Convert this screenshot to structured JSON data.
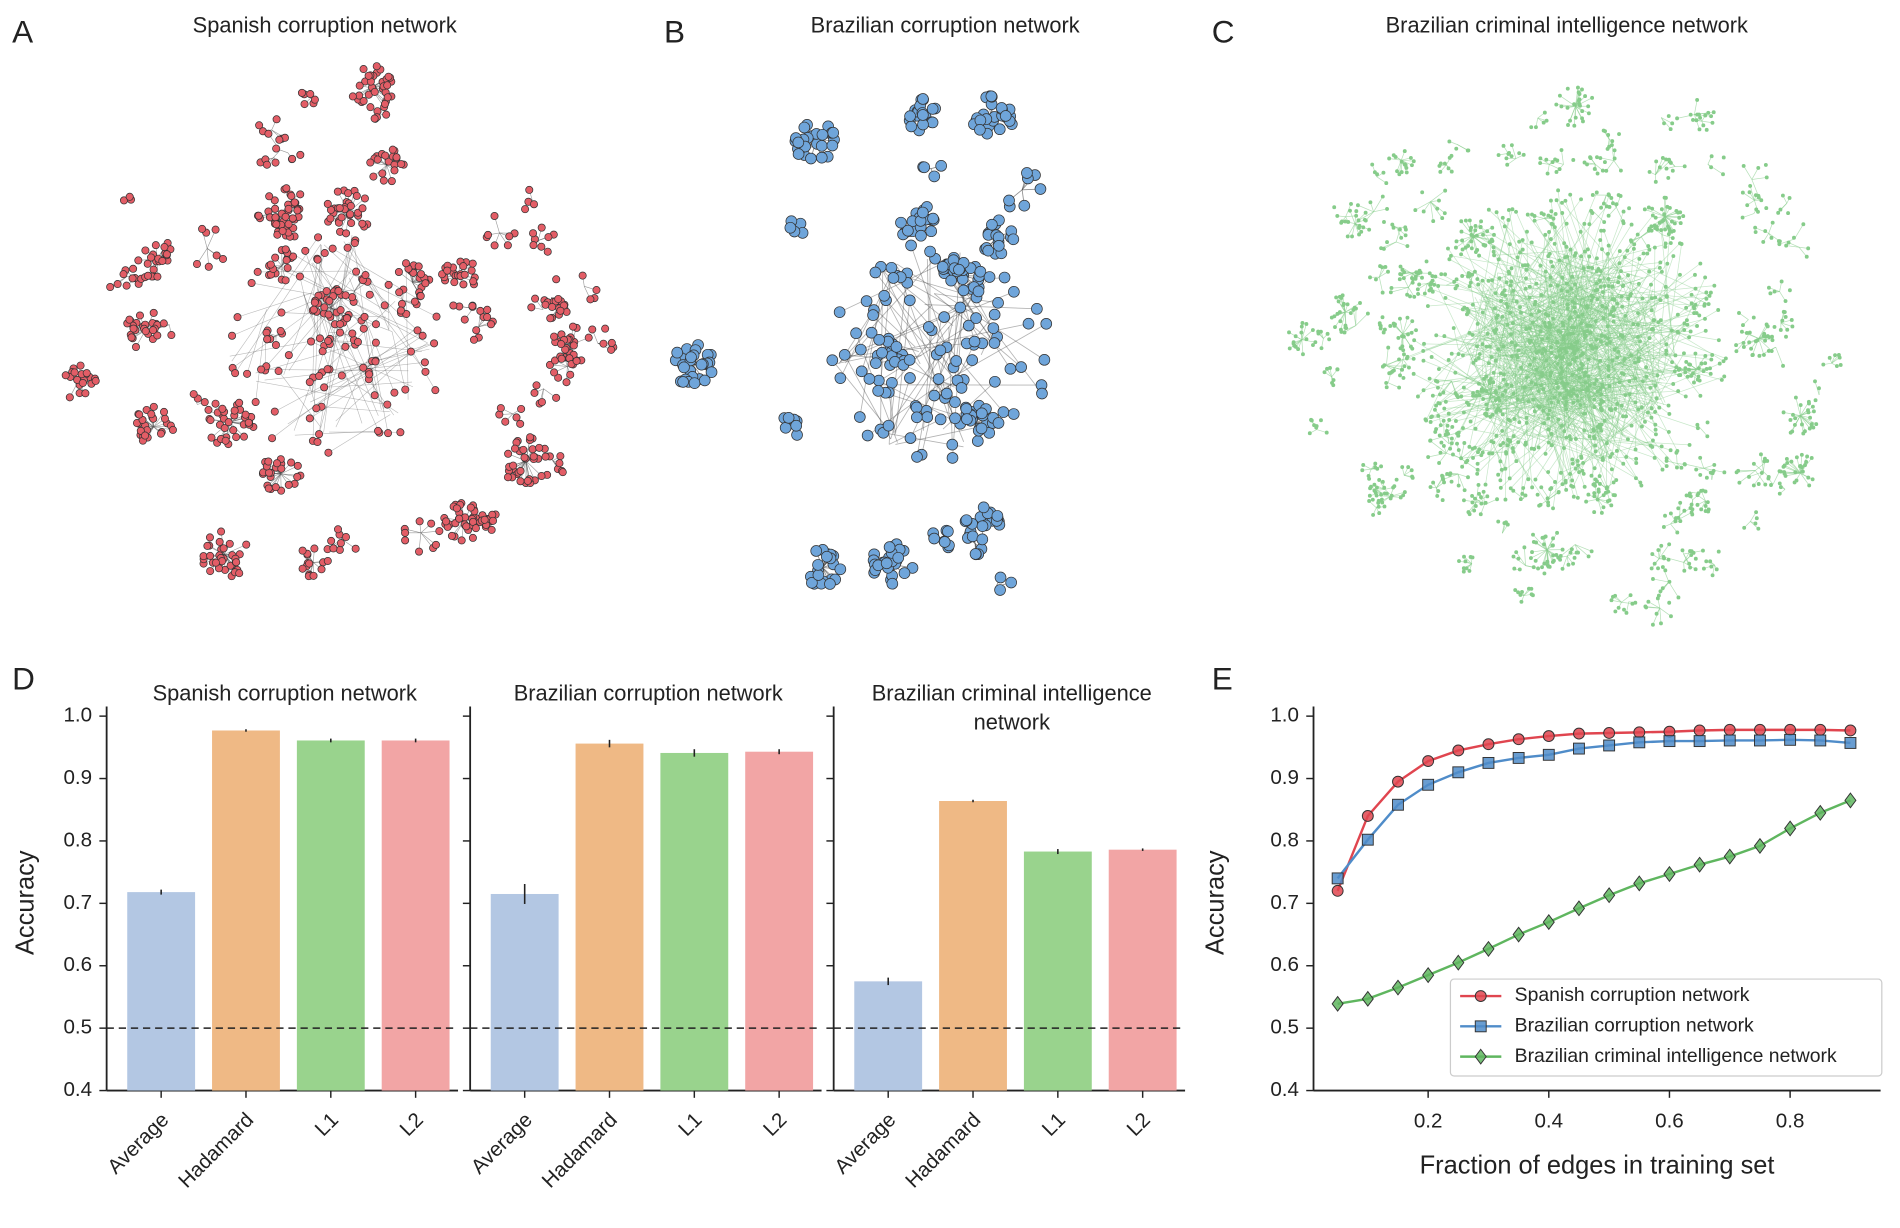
{
  "networks": [
    {
      "label": "A",
      "title": "Spanish corruption network"
    },
    {
      "label": "B",
      "title": "Brazilian corruption network"
    },
    {
      "label": "C",
      "title": "Brazilian criminal intelligence network"
    }
  ],
  "chart_data": [
    {
      "type": "bar",
      "panel_label": "D",
      "title": "Spanish corruption network",
      "ylabel": "Accuracy",
      "categories": [
        "Average",
        "Hadamard",
        "L1",
        "L2"
      ],
      "values": [
        0.718,
        0.977,
        0.961,
        0.961
      ],
      "errors": [
        0.004,
        0.002,
        0.003,
        0.003
      ],
      "colors": [
        "#b3c7e3",
        "#efb985",
        "#99d38d",
        "#f2a5a5"
      ],
      "reference_line": 0.5,
      "ylim": [
        0.4,
        1.0
      ],
      "yticks": [
        0.4,
        0.5,
        0.6,
        0.7,
        0.8,
        0.9,
        {
          "value": 1.0,
          "label": "1.0"
        }
      ]
    },
    {
      "type": "bar",
      "title": "Brazilian corruption network",
      "categories": [
        "Average",
        "Hadamard",
        "L1",
        "L2"
      ],
      "values": [
        0.715,
        0.956,
        0.941,
        0.943
      ],
      "errors": [
        0.016,
        0.006,
        0.006,
        0.004
      ],
      "colors": [
        "#b3c7e3",
        "#efb985",
        "#99d38d",
        "#f2a5a5"
      ],
      "reference_line": 0.5
    },
    {
      "type": "bar",
      "title": "Brazilian criminal intelligence network",
      "categories": [
        "Average",
        "Hadamard",
        "L1",
        "L2"
      ],
      "values": [
        0.575,
        0.864,
        0.783,
        0.786
      ],
      "errors": [
        0.006,
        0.002,
        0.004,
        0.002
      ],
      "colors": [
        "#b3c7e3",
        "#efb985",
        "#99d38d",
        "#f2a5a5"
      ],
      "reference_line": 0.5
    },
    {
      "type": "line",
      "panel_label": "E",
      "xlabel": "Fraction of edges in training set",
      "ylabel": "Accuracy",
      "x": [
        0.05,
        0.1,
        0.15,
        0.2,
        0.25,
        0.3,
        0.35,
        0.4,
        0.45,
        0.5,
        0.55,
        0.6,
        0.65,
        0.7,
        0.75,
        0.8,
        0.85,
        0.9
      ],
      "series": [
        {
          "name": "Spanish corruption network",
          "color": "#e0454f",
          "marker": "circle",
          "values": [
            0.72,
            0.84,
            0.895,
            0.928,
            0.945,
            0.955,
            0.963,
            0.968,
            0.972,
            0.973,
            0.974,
            0.975,
            0.977,
            0.978,
            0.978,
            0.978,
            0.978,
            0.977
          ]
        },
        {
          "name": "Brazilian corruption network",
          "color": "#4f8cc9",
          "marker": "square",
          "values": [
            0.74,
            0.802,
            0.858,
            0.89,
            0.91,
            0.925,
            0.933,
            0.938,
            0.948,
            0.953,
            0.958,
            0.96,
            0.96,
            0.961,
            0.961,
            0.962,
            0.961,
            0.957
          ]
        },
        {
          "name": "Brazilian criminal intelligence network",
          "color": "#5fb65f",
          "marker": "diamond",
          "values": [
            0.539,
            0.547,
            0.565,
            0.585,
            0.605,
            0.627,
            0.65,
            0.67,
            0.692,
            0.713,
            0.732,
            0.747,
            0.762,
            0.775,
            0.792,
            0.82,
            0.845,
            0.865
          ]
        }
      ],
      "xlim": [
        0.01,
        0.95
      ],
      "xticks": [
        0.2,
        0.4,
        0.6,
        0.8
      ],
      "ylim": [
        0.4,
        1.0
      ],
      "yticks": [
        0.4,
        0.5,
        0.6,
        0.7,
        0.8,
        0.9,
        {
          "value": 1.0,
          "label": "1.0"
        }
      ],
      "legend": "lower right"
    }
  ]
}
